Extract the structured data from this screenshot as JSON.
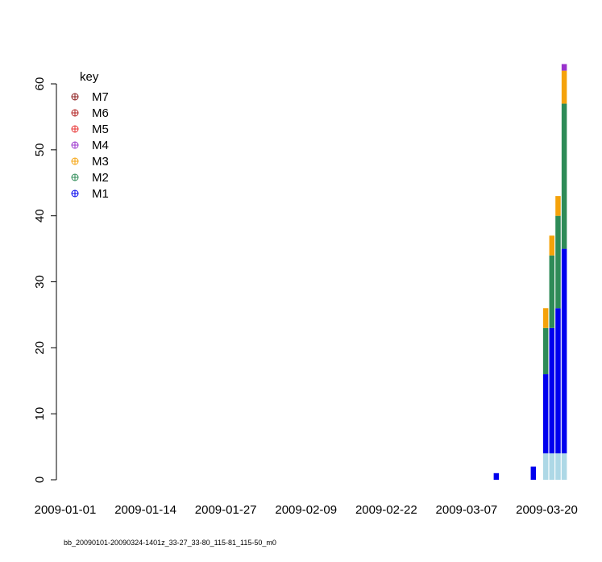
{
  "chart_data": {
    "type": "bar",
    "stacked": true,
    "x_tick_labels": [
      "2009-01-01",
      "2009-01-14",
      "2009-01-27",
      "2009-02-09",
      "2009-02-22",
      "2009-03-07",
      "2009-03-20"
    ],
    "ylim": [
      0,
      60
    ],
    "y_ticks": [
      0,
      10,
      20,
      30,
      40,
      50,
      60
    ],
    "grid": false,
    "legend": {
      "title": "key",
      "placement": "top-left",
      "entries": [
        {
          "label": "M7",
          "color": "#8b1a1a"
        },
        {
          "label": "M6",
          "color": "#b22222"
        },
        {
          "label": "M5",
          "color": "#e83030"
        },
        {
          "label": "M4",
          "color": "#9932cc"
        },
        {
          "label": "M3",
          "color": "#f5a20a"
        },
        {
          "label": "M2",
          "color": "#2e8b57"
        },
        {
          "label": "M1",
          "color": "#0000ee"
        }
      ]
    },
    "base_color": "#add8e6",
    "bars": [
      {
        "date": "2009-03-13",
        "segments": [
          {
            "color": "#0000ee",
            "value": 1
          }
        ]
      },
      {
        "date": "2009-03-19",
        "segments": [
          {
            "color": "#0000ee",
            "value": 2
          }
        ]
      },
      {
        "date": "2009-03-21",
        "segments": [
          {
            "color": "#add8e6",
            "value": 4
          },
          {
            "color": "#0000ee",
            "value": 12
          },
          {
            "color": "#2e8b57",
            "value": 7
          },
          {
            "color": "#f5a20a",
            "value": 3
          }
        ]
      },
      {
        "date": "2009-03-22",
        "segments": [
          {
            "color": "#add8e6",
            "value": 4
          },
          {
            "color": "#0000ee",
            "value": 19
          },
          {
            "color": "#2e8b57",
            "value": 11
          },
          {
            "color": "#f5a20a",
            "value": 3
          }
        ]
      },
      {
        "date": "2009-03-23",
        "segments": [
          {
            "color": "#add8e6",
            "value": 4
          },
          {
            "color": "#0000ee",
            "value": 22
          },
          {
            "color": "#2e8b57",
            "value": 14
          },
          {
            "color": "#f5a20a",
            "value": 3
          }
        ]
      },
      {
        "date": "2009-03-24",
        "segments": [
          {
            "color": "#add8e6",
            "value": 4
          },
          {
            "color": "#0000ee",
            "value": 31
          },
          {
            "color": "#2e8b57",
            "value": 22
          },
          {
            "color": "#f5a20a",
            "value": 5
          },
          {
            "color": "#9932cc",
            "value": 1
          }
        ]
      }
    ],
    "footer": "bb_20090101-20090324-1401z_33-27_33-80_115-81_115-50_m0"
  }
}
